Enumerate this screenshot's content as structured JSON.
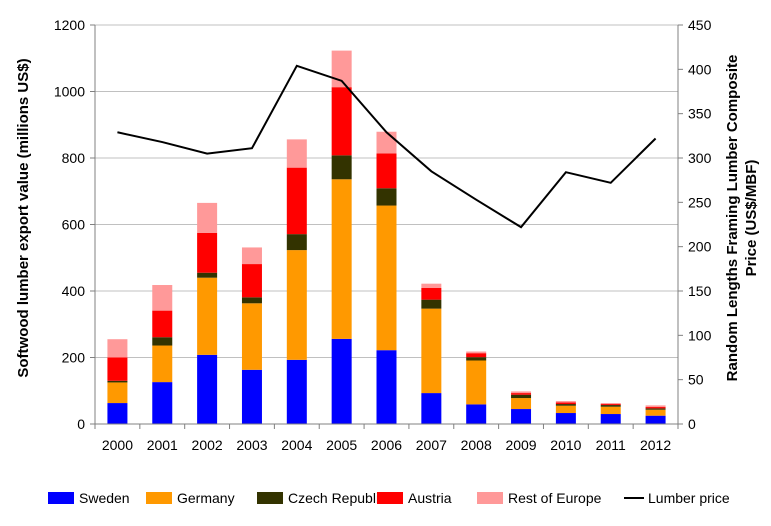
{
  "chart_data": {
    "type": "bar",
    "stacked": true,
    "categories": [
      "2000",
      "2001",
      "2002",
      "2003",
      "2004",
      "2005",
      "2006",
      "2007",
      "2008",
      "2009",
      "2010",
      "2011",
      "2012"
    ],
    "series": [
      {
        "name": "Sweden",
        "color": "#0000ff",
        "values": [
          63,
          126,
          208,
          163,
          193,
          256,
          222,
          93,
          59,
          45,
          33,
          30,
          25
        ]
      },
      {
        "name": "Germany",
        "color": "#ff9900",
        "values": [
          62,
          110,
          232,
          200,
          330,
          480,
          435,
          254,
          132,
          33,
          22,
          22,
          18
        ]
      },
      {
        "name": "Czech Republic",
        "color": "#333300",
        "values": [
          5,
          25,
          15,
          18,
          48,
          72,
          52,
          27,
          10,
          10,
          5,
          5,
          4
        ]
      },
      {
        "name": "Austria",
        "color": "#ff0000",
        "values": [
          70,
          80,
          120,
          100,
          200,
          205,
          105,
          35,
          12,
          5,
          5,
          3,
          4
        ]
      },
      {
        "name": "Rest of Europe",
        "color": "#ff9999",
        "values": [
          55,
          77,
          90,
          50,
          85,
          110,
          65,
          13,
          5,
          5,
          4,
          3,
          5
        ]
      }
    ],
    "line_series": {
      "name": "Lumber price",
      "color": "#000000",
      "axis": "right",
      "values": [
        329,
        318,
        305,
        311,
        404,
        387,
        329,
        285,
        253,
        222,
        284,
        272,
        322
      ]
    },
    "ylabel": "Softwood lumber export value (millions US$)",
    "ylabel_right": "Random Lengths Framing Lumber Composite Price (US$/MBF)",
    "ylim": [
      0,
      1200
    ],
    "ylim_right": [
      0,
      450
    ],
    "yticks": [
      "0",
      "200",
      "400",
      "600",
      "800",
      "1000",
      "1200"
    ],
    "yticks_right": [
      "0",
      "50",
      "100",
      "150",
      "200",
      "250",
      "300",
      "350",
      "400",
      "450"
    ],
    "grid": true,
    "legend_position": "bottom"
  }
}
